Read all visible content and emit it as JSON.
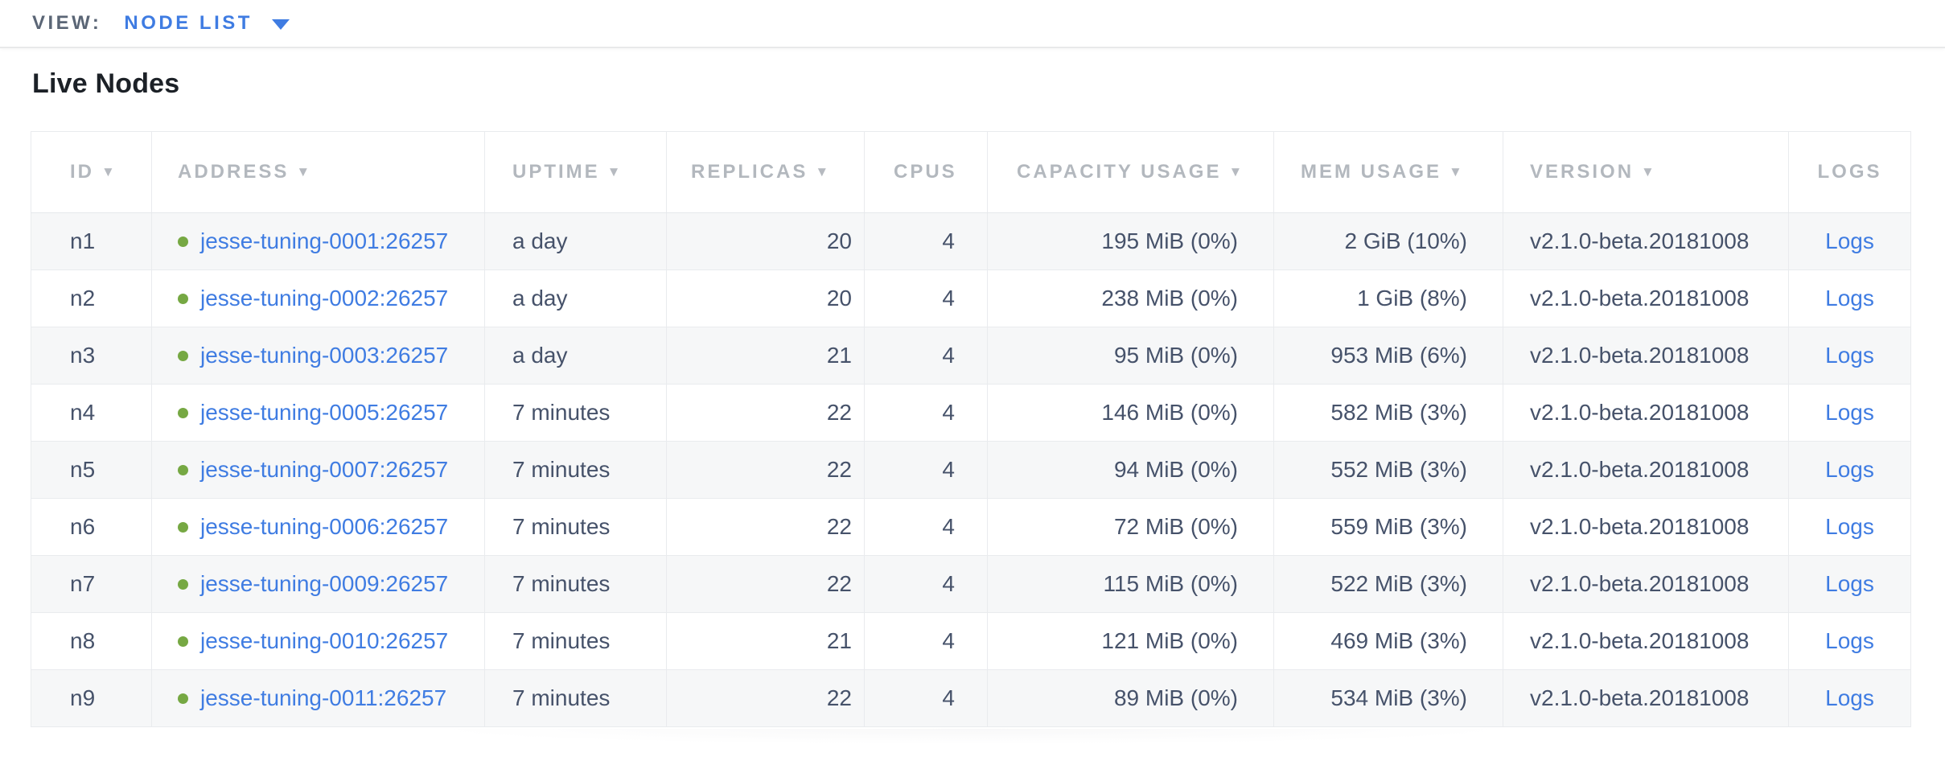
{
  "view_bar": {
    "label": "VIEW:",
    "selected": "NODE LIST"
  },
  "page": {
    "title": "Live Nodes"
  },
  "table": {
    "sort_icon": "▼",
    "columns": [
      {
        "key": "id",
        "label": "ID",
        "sortable": true
      },
      {
        "key": "address",
        "label": "ADDRESS",
        "sortable": true
      },
      {
        "key": "uptime",
        "label": "UPTIME",
        "sortable": true
      },
      {
        "key": "replicas",
        "label": "REPLICAS",
        "sortable": true
      },
      {
        "key": "cpus",
        "label": "CPUS",
        "sortable": false
      },
      {
        "key": "capacity",
        "label": "CAPACITY USAGE",
        "sortable": true
      },
      {
        "key": "mem",
        "label": "MEM USAGE",
        "sortable": true
      },
      {
        "key": "version",
        "label": "VERSION",
        "sortable": true
      },
      {
        "key": "logs",
        "label": "LOGS",
        "sortable": false
      }
    ],
    "rows": [
      {
        "id": "n1",
        "address": "jesse-tuning-0001:26257",
        "uptime": "a day",
        "replicas": "20",
        "cpus": "4",
        "capacity": "195 MiB (0%)",
        "mem": "2 GiB (10%)",
        "version": "v2.1.0-beta.20181008",
        "logs": "Logs"
      },
      {
        "id": "n2",
        "address": "jesse-tuning-0002:26257",
        "uptime": "a day",
        "replicas": "20",
        "cpus": "4",
        "capacity": "238 MiB (0%)",
        "mem": "1 GiB (8%)",
        "version": "v2.1.0-beta.20181008",
        "logs": "Logs"
      },
      {
        "id": "n3",
        "address": "jesse-tuning-0003:26257",
        "uptime": "a day",
        "replicas": "21",
        "cpus": "4",
        "capacity": "95 MiB (0%)",
        "mem": "953 MiB (6%)",
        "version": "v2.1.0-beta.20181008",
        "logs": "Logs"
      },
      {
        "id": "n4",
        "address": "jesse-tuning-0005:26257",
        "uptime": "7 minutes",
        "replicas": "22",
        "cpus": "4",
        "capacity": "146 MiB (0%)",
        "mem": "582 MiB (3%)",
        "version": "v2.1.0-beta.20181008",
        "logs": "Logs"
      },
      {
        "id": "n5",
        "address": "jesse-tuning-0007:26257",
        "uptime": "7 minutes",
        "replicas": "22",
        "cpus": "4",
        "capacity": "94 MiB (0%)",
        "mem": "552 MiB (3%)",
        "version": "v2.1.0-beta.20181008",
        "logs": "Logs"
      },
      {
        "id": "n6",
        "address": "jesse-tuning-0006:26257",
        "uptime": "7 minutes",
        "replicas": "22",
        "cpus": "4",
        "capacity": "72 MiB (0%)",
        "mem": "559 MiB (3%)",
        "version": "v2.1.0-beta.20181008",
        "logs": "Logs"
      },
      {
        "id": "n7",
        "address": "jesse-tuning-0009:26257",
        "uptime": "7 minutes",
        "replicas": "22",
        "cpus": "4",
        "capacity": "115 MiB (0%)",
        "mem": "522 MiB (3%)",
        "version": "v2.1.0-beta.20181008",
        "logs": "Logs"
      },
      {
        "id": "n8",
        "address": "jesse-tuning-0010:26257",
        "uptime": "7 minutes",
        "replicas": "21",
        "cpus": "4",
        "capacity": "121 MiB (0%)",
        "mem": "469 MiB (3%)",
        "version": "v2.1.0-beta.20181008",
        "logs": "Logs"
      },
      {
        "id": "n9",
        "address": "jesse-tuning-0011:26257",
        "uptime": "7 minutes",
        "replicas": "22",
        "cpus": "4",
        "capacity": "89 MiB (0%)",
        "mem": "534 MiB (3%)",
        "version": "v2.1.0-beta.20181008",
        "logs": "Logs"
      }
    ]
  },
  "colors": {
    "accent_blue": "#3f7ce2",
    "node_live_green": "#76a843",
    "header_text": "#b3b8be",
    "cell_text": "#46526a",
    "row_stripe": "#f6f7f8",
    "border": "#e9ebee",
    "title_text": "#1c2127",
    "view_label_text": "#5b6676"
  }
}
